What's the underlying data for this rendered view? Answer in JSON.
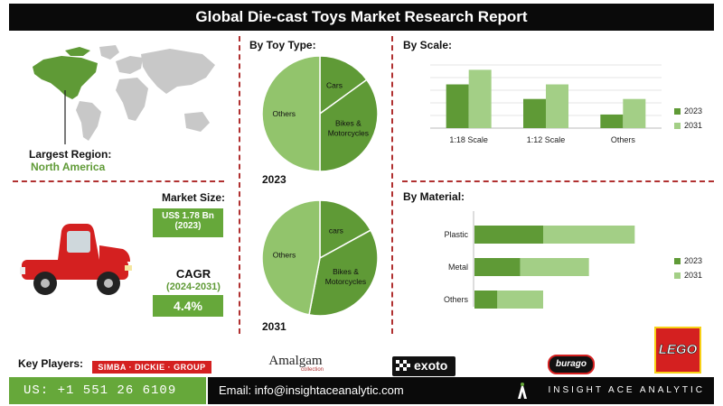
{
  "title": "Global Die-cast Toys Market Research Report",
  "region": {
    "label": "Largest Region:",
    "value": "North America"
  },
  "market_size": {
    "label": "Market Size:",
    "value": "US$ 1.78 Bn",
    "year": "(2023)"
  },
  "cagr": {
    "label": "CAGR",
    "period": "(2024-2031)",
    "value": "4.4%"
  },
  "toy_type": {
    "title": "By Toy Type:",
    "year_2023": "2023",
    "year_2031": "2031"
  },
  "scale": {
    "title": "By Scale:"
  },
  "material": {
    "title": "By Material:"
  },
  "key_players": {
    "label": "Key Players:",
    "simba": "SIMBA · DICKIE · GROUP",
    "amalgam": "Amalgam",
    "amalgam_sub": "collection",
    "exoto": "exoto",
    "burago": "burago",
    "lego": "LEGO"
  },
  "footer": {
    "phone": "US: +1 551 26 6109",
    "email": "Email: info@insightaceanalytic.com",
    "brand": "INSIGHT ACE ANALYTIC"
  },
  "colors": {
    "dark_green": "#5f9a36",
    "light_green": "#a3cf86",
    "pie_light": "#92c46c",
    "accent_red": "#b03030"
  },
  "chart_data": [
    {
      "type": "pie",
      "title": "2023",
      "labels": [
        "Cars",
        "Bikes & Motorcycles",
        "Others"
      ],
      "values": [
        15,
        35,
        50
      ]
    },
    {
      "type": "pie",
      "title": "2031",
      "labels": [
        "cars",
        "Bikes & Motorcycles",
        "Others"
      ],
      "values": [
        17,
        36,
        47
      ]
    },
    {
      "type": "bar",
      "title": "By Scale:",
      "categories": [
        "1:18 Scale",
        "1:12 Scale",
        "Others"
      ],
      "series": [
        {
          "name": "2023",
          "values": [
            45,
            30,
            14
          ]
        },
        {
          "name": "2031",
          "values": [
            60,
            45,
            30
          ]
        }
      ],
      "ylim": [
        0,
        65
      ],
      "legend": "right"
    },
    {
      "type": "bar",
      "orientation": "horizontal",
      "title": "By Material:",
      "categories": [
        "Plastic",
        "Metal",
        "Others"
      ],
      "series": [
        {
          "name": "2023",
          "values": [
            30,
            20,
            10
          ]
        },
        {
          "name": "2031",
          "values": [
            40,
            30,
            20
          ]
        }
      ],
      "stacked": true,
      "legend": "right"
    }
  ]
}
